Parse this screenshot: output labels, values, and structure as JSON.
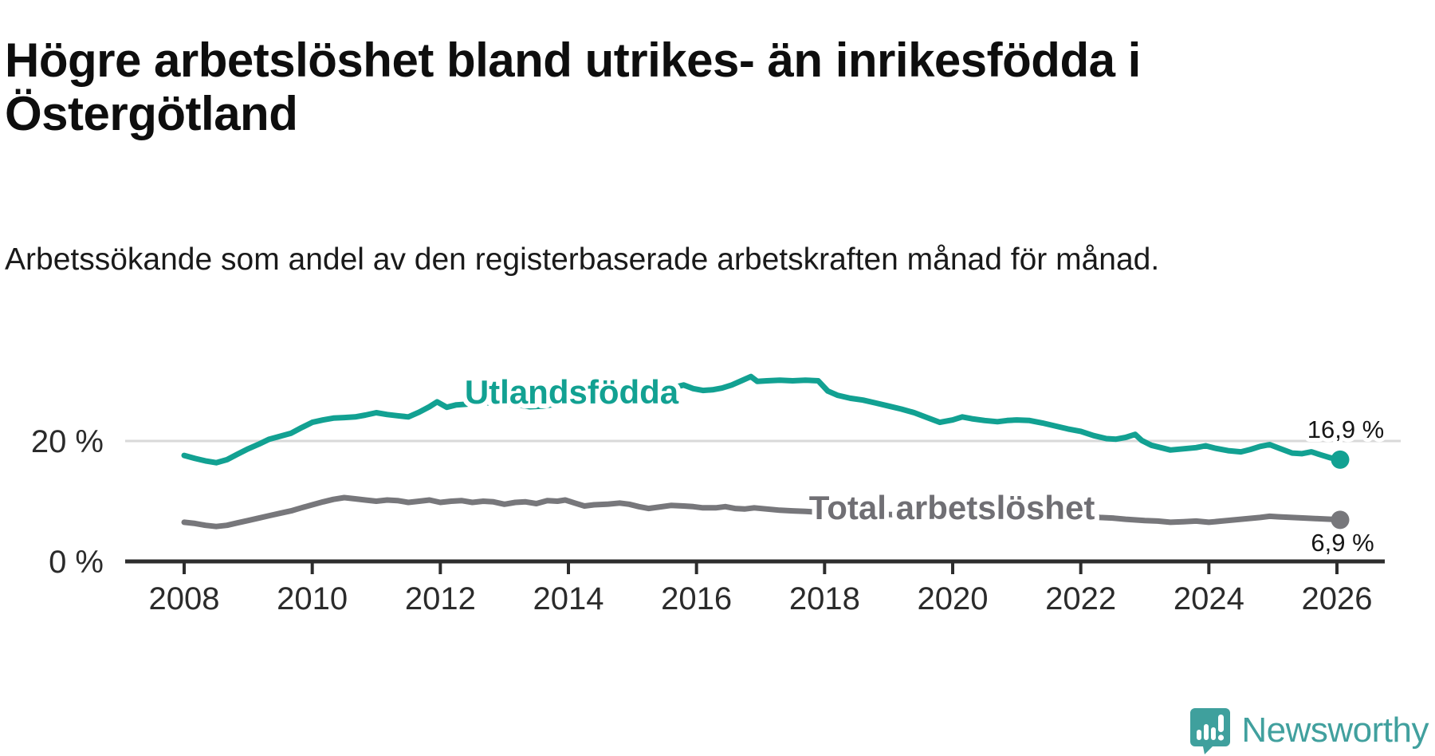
{
  "header": {
    "title": "Högre arbetslöshet bland utrikes- än inrikesfödda i Östergötland",
    "subtitle": "Arbetssökande som andel av den registerbaserade arbetskraften månad för månad."
  },
  "chart_data": {
    "type": "line",
    "title": "Högre arbetslöshet bland utrikes- än inrikesfödda i Östergötland",
    "subtitle": "Arbetssökande som andel av den registerbaserade arbetskraften månad för månad.",
    "unit": "%",
    "x_ticks": [
      2008,
      2010,
      2012,
      2014,
      2016,
      2018,
      2020,
      2022,
      2024,
      2026
    ],
    "y_ticks": [
      {
        "value": 20,
        "label": "20 %"
      },
      {
        "value": 0,
        "label": "0 %"
      }
    ],
    "xlim": [
      2007.1,
      2026.75
    ],
    "ylim": [
      0,
      33
    ],
    "grid": "single light horizontal gridline at 20 %",
    "legend_position": "inline series labels",
    "series": [
      {
        "name": "Utlandsfödda",
        "color": "#12a192",
        "end_label": "16,9 %",
        "end_value": 16.9,
        "points": [
          [
            2008.0,
            17.6
          ],
          [
            2008.17,
            17.1
          ],
          [
            2008.33,
            16.7
          ],
          [
            2008.5,
            16.4
          ],
          [
            2008.67,
            16.9
          ],
          [
            2008.83,
            17.8
          ],
          [
            2009.0,
            18.7
          ],
          [
            2009.17,
            19.5
          ],
          [
            2009.33,
            20.3
          ],
          [
            2009.5,
            20.8
          ],
          [
            2009.67,
            21.3
          ],
          [
            2009.83,
            22.2
          ],
          [
            2010.0,
            23.1
          ],
          [
            2010.17,
            23.5
          ],
          [
            2010.33,
            23.8
          ],
          [
            2010.5,
            23.9
          ],
          [
            2010.67,
            24.0
          ],
          [
            2010.83,
            24.3
          ],
          [
            2011.0,
            24.7
          ],
          [
            2011.17,
            24.4
          ],
          [
            2011.33,
            24.2
          ],
          [
            2011.5,
            24.0
          ],
          [
            2011.67,
            24.8
          ],
          [
            2011.83,
            25.7
          ],
          [
            2011.95,
            26.5
          ],
          [
            2012.1,
            25.6
          ],
          [
            2012.25,
            26.0
          ],
          [
            2012.4,
            26.1
          ],
          [
            2012.55,
            26.3
          ],
          [
            2012.7,
            26.4
          ],
          [
            2012.85,
            26.2
          ],
          [
            2013.0,
            26.1
          ],
          [
            2013.2,
            26.0
          ],
          [
            2013.4,
            25.7
          ],
          [
            2013.6,
            25.8
          ],
          [
            2013.8,
            26.1
          ],
          [
            2014.0,
            26.5
          ],
          [
            2014.2,
            26.8
          ],
          [
            2014.4,
            27.0
          ],
          [
            2014.6,
            27.3
          ],
          [
            2014.8,
            27.6
          ],
          [
            2015.0,
            28.0
          ],
          [
            2015.2,
            28.2
          ],
          [
            2015.4,
            28.4
          ],
          [
            2015.6,
            28.8
          ],
          [
            2015.8,
            29.3
          ],
          [
            2015.95,
            28.7
          ],
          [
            2016.1,
            28.4
          ],
          [
            2016.25,
            28.5
          ],
          [
            2016.4,
            28.8
          ],
          [
            2016.55,
            29.3
          ],
          [
            2016.7,
            30.0
          ],
          [
            2016.85,
            30.7
          ],
          [
            2016.95,
            29.9
          ],
          [
            2017.1,
            30.0
          ],
          [
            2017.3,
            30.1
          ],
          [
            2017.5,
            30.0
          ],
          [
            2017.7,
            30.1
          ],
          [
            2017.9,
            30.0
          ],
          [
            2018.05,
            28.3
          ],
          [
            2018.2,
            27.6
          ],
          [
            2018.4,
            27.1
          ],
          [
            2018.6,
            26.8
          ],
          [
            2018.8,
            26.3
          ],
          [
            2019.0,
            25.8
          ],
          [
            2019.2,
            25.3
          ],
          [
            2019.4,
            24.7
          ],
          [
            2019.6,
            23.9
          ],
          [
            2019.8,
            23.1
          ],
          [
            2020.0,
            23.5
          ],
          [
            2020.15,
            24.0
          ],
          [
            2020.3,
            23.7
          ],
          [
            2020.5,
            23.4
          ],
          [
            2020.7,
            23.2
          ],
          [
            2020.85,
            23.4
          ],
          [
            2021.0,
            23.5
          ],
          [
            2021.2,
            23.4
          ],
          [
            2021.4,
            23.0
          ],
          [
            2021.6,
            22.5
          ],
          [
            2021.8,
            22.0
          ],
          [
            2022.0,
            21.6
          ],
          [
            2022.2,
            20.9
          ],
          [
            2022.4,
            20.4
          ],
          [
            2022.55,
            20.3
          ],
          [
            2022.7,
            20.6
          ],
          [
            2022.85,
            21.1
          ],
          [
            2022.95,
            20.1
          ],
          [
            2023.1,
            19.3
          ],
          [
            2023.25,
            18.9
          ],
          [
            2023.4,
            18.5
          ],
          [
            2023.6,
            18.7
          ],
          [
            2023.8,
            18.9
          ],
          [
            2023.95,
            19.2
          ],
          [
            2024.1,
            18.8
          ],
          [
            2024.3,
            18.4
          ],
          [
            2024.5,
            18.2
          ],
          [
            2024.65,
            18.6
          ],
          [
            2024.8,
            19.1
          ],
          [
            2024.95,
            19.4
          ],
          [
            2025.1,
            18.8
          ],
          [
            2025.3,
            18.0
          ],
          [
            2025.45,
            17.9
          ],
          [
            2025.6,
            18.2
          ],
          [
            2025.75,
            17.7
          ],
          [
            2025.9,
            17.2
          ],
          [
            2026.05,
            16.9
          ]
        ]
      },
      {
        "name": "Total arbetslöshet",
        "color": "#77777b",
        "end_label": "6,9 %",
        "end_value": 6.9,
        "points": [
          [
            2008.0,
            6.5
          ],
          [
            2008.17,
            6.3
          ],
          [
            2008.33,
            6.0
          ],
          [
            2008.5,
            5.8
          ],
          [
            2008.67,
            6.0
          ],
          [
            2008.83,
            6.4
          ],
          [
            2009.0,
            6.8
          ],
          [
            2009.17,
            7.2
          ],
          [
            2009.33,
            7.6
          ],
          [
            2009.5,
            8.0
          ],
          [
            2009.67,
            8.4
          ],
          [
            2009.83,
            8.9
          ],
          [
            2010.0,
            9.4
          ],
          [
            2010.17,
            9.9
          ],
          [
            2010.33,
            10.3
          ],
          [
            2010.5,
            10.6
          ],
          [
            2010.67,
            10.4
          ],
          [
            2010.83,
            10.2
          ],
          [
            2011.0,
            10.0
          ],
          [
            2011.17,
            10.2
          ],
          [
            2011.33,
            10.1
          ],
          [
            2011.5,
            9.8
          ],
          [
            2011.67,
            10.0
          ],
          [
            2011.83,
            10.2
          ],
          [
            2012.0,
            9.8
          ],
          [
            2012.17,
            10.0
          ],
          [
            2012.33,
            10.1
          ],
          [
            2012.5,
            9.8
          ],
          [
            2012.67,
            10.0
          ],
          [
            2012.83,
            9.9
          ],
          [
            2013.0,
            9.5
          ],
          [
            2013.17,
            9.8
          ],
          [
            2013.33,
            9.9
          ],
          [
            2013.5,
            9.6
          ],
          [
            2013.67,
            10.1
          ],
          [
            2013.83,
            10.0
          ],
          [
            2013.95,
            10.2
          ],
          [
            2014.1,
            9.7
          ],
          [
            2014.25,
            9.2
          ],
          [
            2014.4,
            9.4
          ],
          [
            2014.6,
            9.5
          ],
          [
            2014.8,
            9.7
          ],
          [
            2014.95,
            9.5
          ],
          [
            2015.1,
            9.1
          ],
          [
            2015.25,
            8.8
          ],
          [
            2015.4,
            9.0
          ],
          [
            2015.6,
            9.3
          ],
          [
            2015.8,
            9.2
          ],
          [
            2015.95,
            9.1
          ],
          [
            2016.1,
            8.9
          ],
          [
            2016.3,
            8.9
          ],
          [
            2016.45,
            9.1
          ],
          [
            2016.6,
            8.8
          ],
          [
            2016.75,
            8.7
          ],
          [
            2016.9,
            8.9
          ],
          [
            2017.1,
            8.7
          ],
          [
            2017.3,
            8.5
          ],
          [
            2017.5,
            8.4
          ],
          [
            2017.7,
            8.3
          ],
          [
            2017.9,
            8.2
          ],
          [
            2018.1,
            8.0
          ],
          [
            2018.4,
            7.9
          ],
          [
            2018.7,
            7.8
          ],
          [
            2019.0,
            7.8
          ],
          [
            2019.3,
            7.7
          ],
          [
            2019.6,
            7.6
          ],
          [
            2019.9,
            7.7
          ],
          [
            2020.1,
            8.0
          ],
          [
            2020.3,
            9.0
          ],
          [
            2020.5,
            9.4
          ],
          [
            2020.7,
            9.3
          ],
          [
            2020.9,
            9.1
          ],
          [
            2021.1,
            8.9
          ],
          [
            2021.4,
            8.5
          ],
          [
            2021.7,
            8.0
          ],
          [
            2022.0,
            7.6
          ],
          [
            2022.3,
            7.3
          ],
          [
            2022.5,
            7.2
          ],
          [
            2022.7,
            7.0
          ],
          [
            2023.0,
            6.8
          ],
          [
            2023.2,
            6.7
          ],
          [
            2023.4,
            6.5
          ],
          [
            2023.6,
            6.6
          ],
          [
            2023.8,
            6.7
          ],
          [
            2024.0,
            6.5
          ],
          [
            2024.2,
            6.7
          ],
          [
            2024.4,
            6.9
          ],
          [
            2024.6,
            7.1
          ],
          [
            2024.8,
            7.3
          ],
          [
            2024.95,
            7.5
          ],
          [
            2025.1,
            7.4
          ],
          [
            2025.3,
            7.3
          ],
          [
            2025.5,
            7.2
          ],
          [
            2025.7,
            7.1
          ],
          [
            2025.9,
            7.0
          ],
          [
            2026.05,
            6.9
          ]
        ]
      }
    ],
    "colors": {
      "axis": "#2d2d2d",
      "gridline": "#d9d9d9",
      "tick_text": "#2b2b2b",
      "end_label_text": "#161616"
    }
  },
  "footer": {
    "logo_text": "Newsworthy",
    "logo_color": "#41a09e",
    "logo_icon": "speech-bubble-bar-chart-exclamation"
  }
}
